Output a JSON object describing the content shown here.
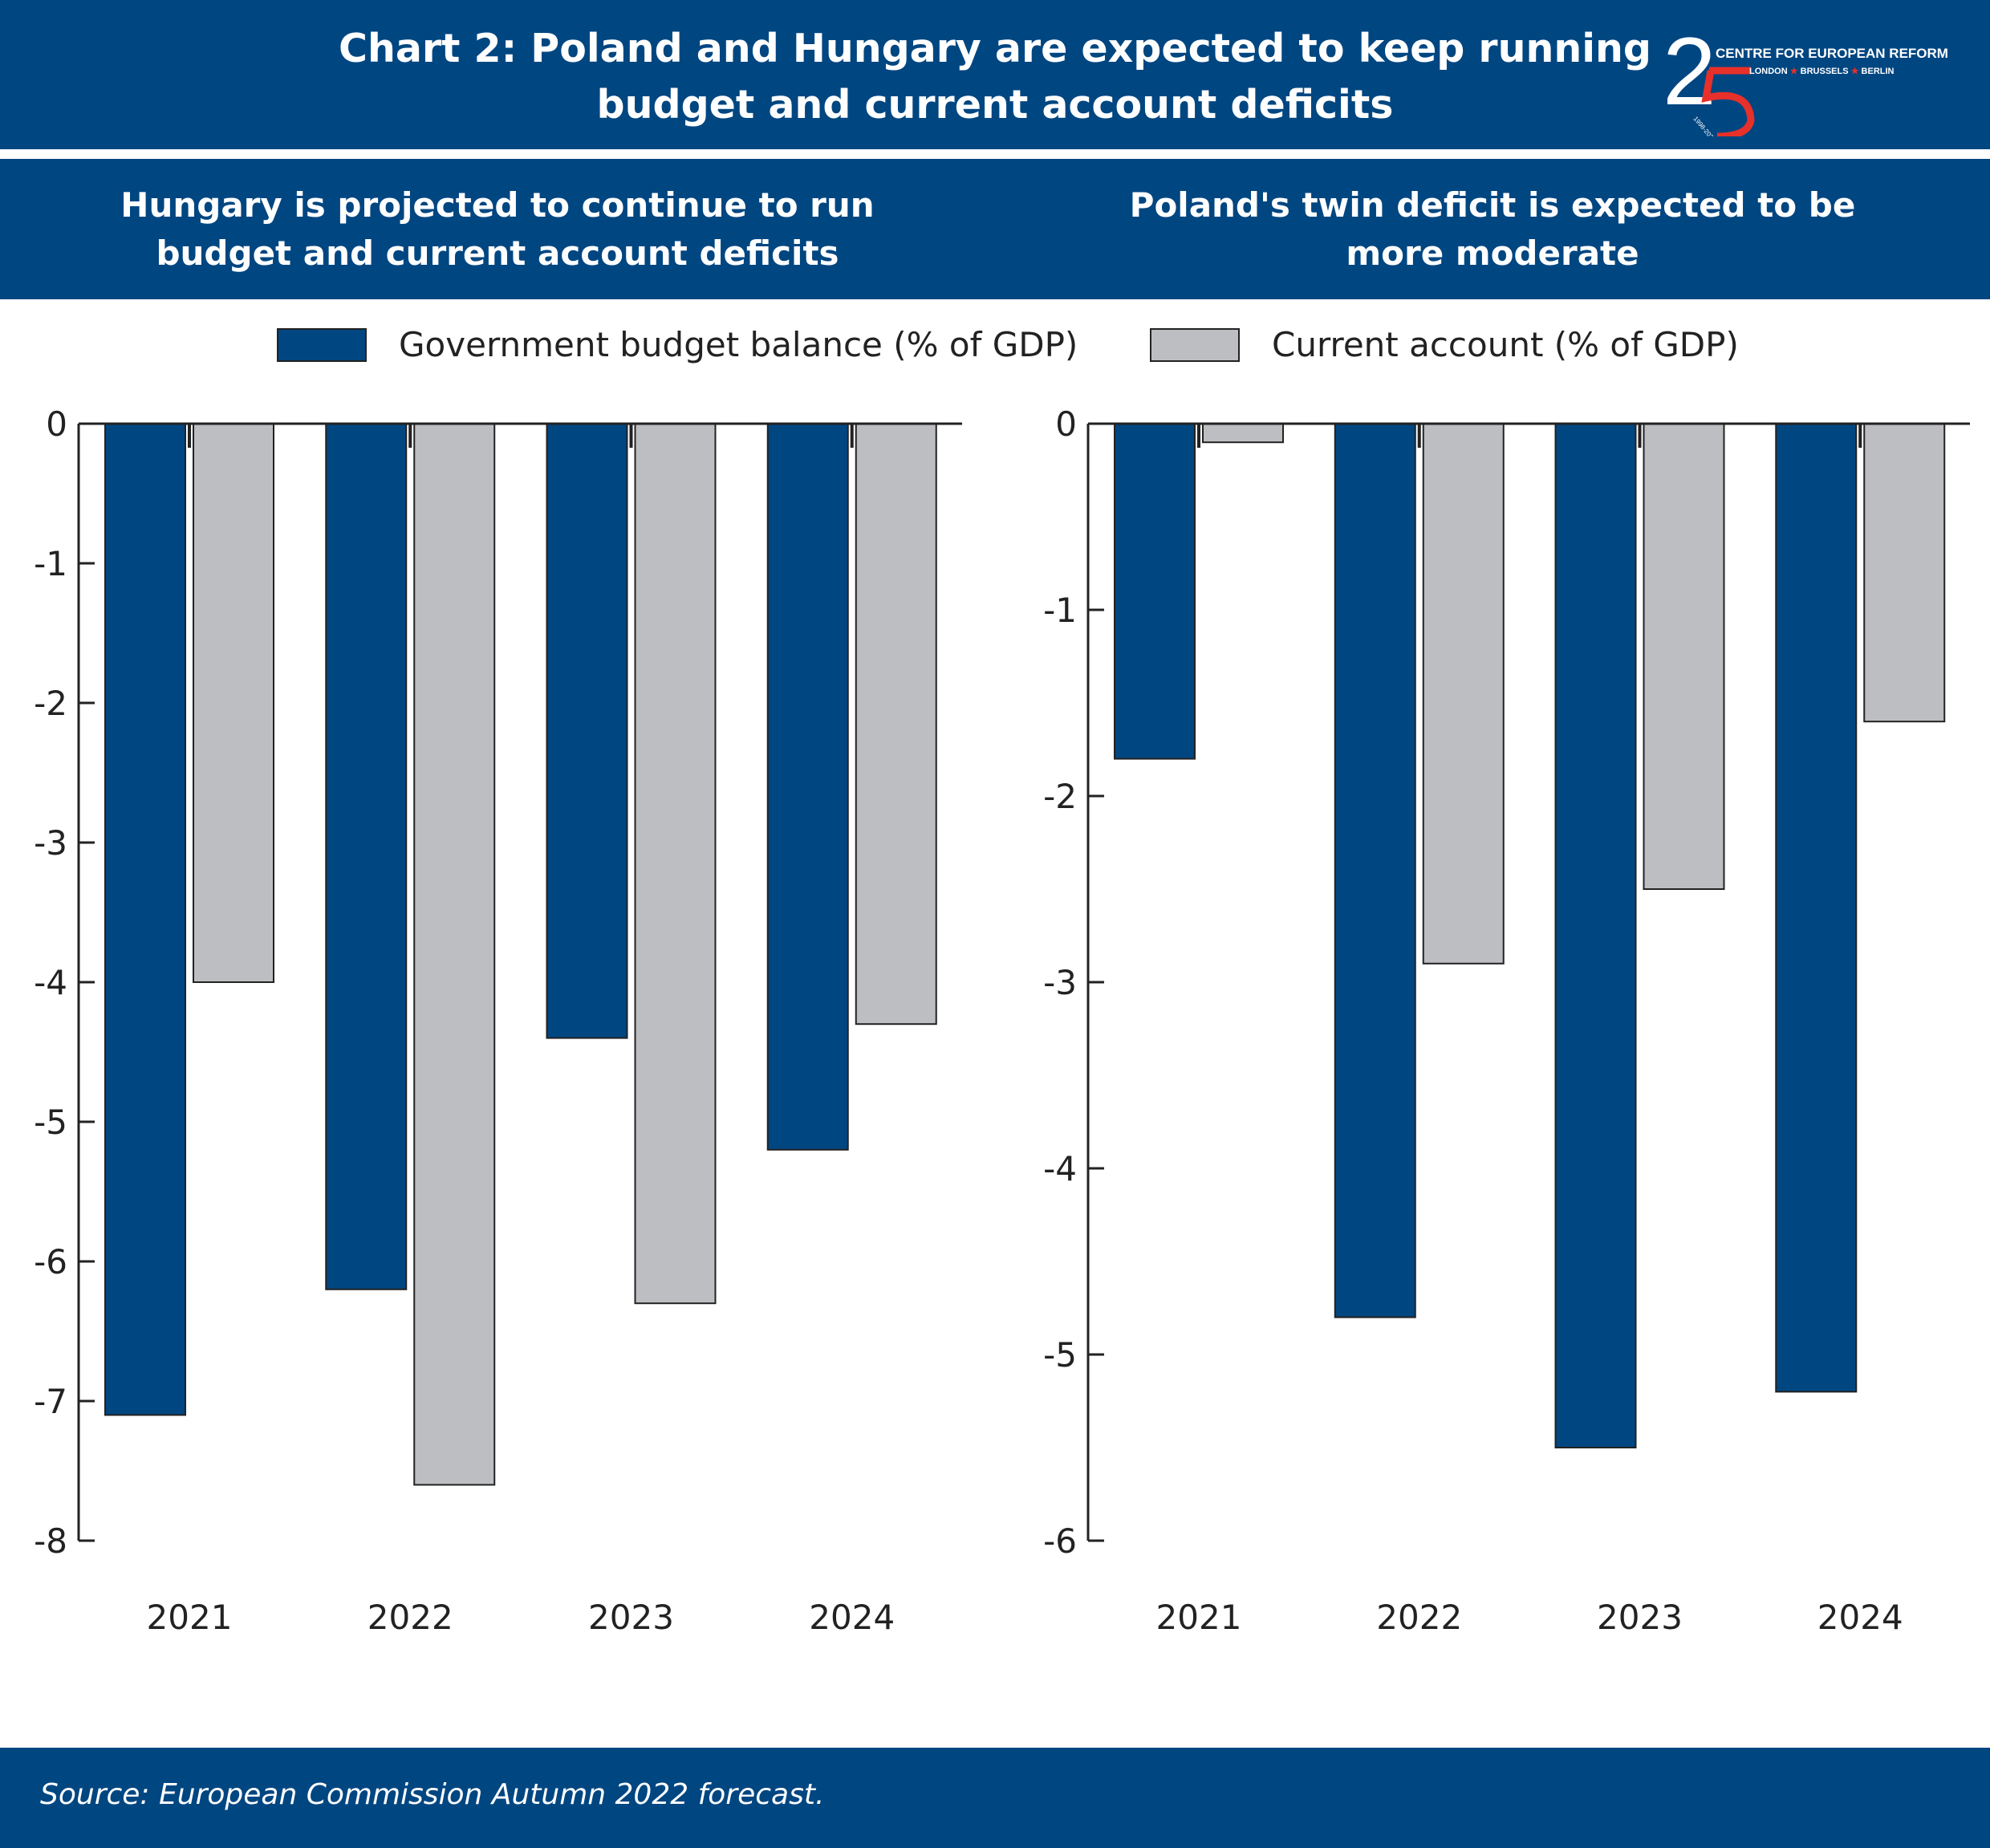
{
  "title_line1": "Chart 2: Poland and Hungary are expected to keep running",
  "title_line2": "budget and current account deficits",
  "logo": {
    "text": "CENTRE FOR EUROPEAN REFORM",
    "cities": [
      "LONDON",
      "BRUSSELS",
      "BERLIN"
    ],
    "years": "1998-2023",
    "number": "25"
  },
  "source": "Source: European Commission Autumn 2022 forecast.",
  "colors": {
    "band": "#004681",
    "budget": "#004681",
    "current_account": "#bdbec2",
    "logo_red": "#e8302a"
  },
  "legend": [
    {
      "label": "Government budget balance (% of GDP)",
      "color": "#004681"
    },
    {
      "label": "Current account (% of GDP)",
      "color": "#bdbec2"
    }
  ],
  "chart_data": [
    {
      "type": "bar",
      "title_line1": "Hungary is projected to continue to run",
      "title_line2": "budget and current account deficits",
      "categories": [
        "2021",
        "2022",
        "2023",
        "2024"
      ],
      "series": [
        {
          "name": "Government budget balance (% of GDP)",
          "values": [
            -7.1,
            -6.2,
            -4.4,
            -5.2
          ]
        },
        {
          "name": "Current account (% of GDP)",
          "values": [
            -4.0,
            -7.6,
            -6.3,
            -4.3
          ]
        }
      ],
      "ylim": [
        -8,
        0
      ],
      "yticks": [
        "0",
        "-1",
        "-2",
        "-3",
        "-4",
        "-5",
        "-6",
        "-7",
        "-8"
      ],
      "grid": false
    },
    {
      "type": "bar",
      "title_line1": "Poland's twin deficit is expected to be",
      "title_line2": "more moderate",
      "categories": [
        "2021",
        "2022",
        "2023",
        "2024"
      ],
      "series": [
        {
          "name": "Government budget balance (% of GDP)",
          "values": [
            -1.8,
            -4.8,
            -5.5,
            -5.2
          ]
        },
        {
          "name": "Current account (% of GDP)",
          "values": [
            -0.1,
            -2.9,
            -2.5,
            -1.6
          ]
        }
      ],
      "ylim": [
        -6,
        0
      ],
      "yticks": [
        "0",
        "-1",
        "-2",
        "-3",
        "-4",
        "-5",
        "-6"
      ],
      "grid": false
    }
  ]
}
